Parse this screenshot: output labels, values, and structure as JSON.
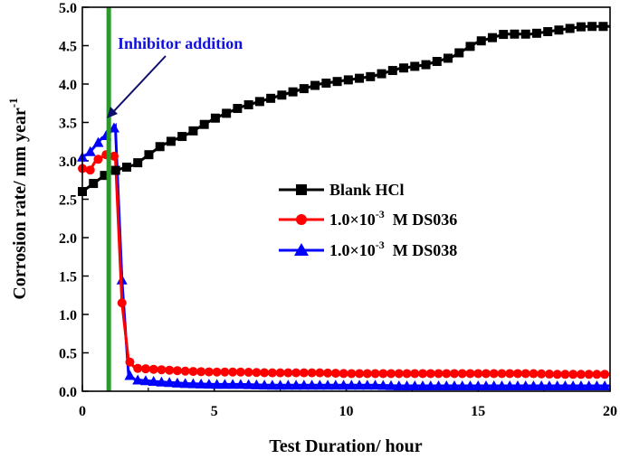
{
  "chart_data": {
    "type": "line",
    "xlabel": "Test Duration/ hour",
    "ylabel": "Corrosion rate/ mm year",
    "ylabel_sup": "-1",
    "xlim": [
      0,
      20
    ],
    "ylim": [
      0,
      5.0
    ],
    "xticks": [
      "0",
      "5",
      "10",
      "15",
      "20"
    ],
    "yticks": [
      "0.0",
      "0.5",
      "1.0",
      "1.5",
      "2.0",
      "2.5",
      "3.0",
      "3.5",
      "4.0",
      "4.5",
      "5.0"
    ],
    "grid": false,
    "legend_position": "center-right",
    "annotation": {
      "text": "Inhibitor addition",
      "x": 1.0,
      "color": "#1010e0"
    },
    "vline": {
      "x": 1.0,
      "color": "#2a9a2a"
    },
    "series": [
      {
        "name": "Blank HCl",
        "color": "#000000",
        "marker": "square",
        "x": [
          0,
          1,
          2,
          3,
          4,
          5,
          6,
          7,
          8,
          9,
          10,
          11,
          12,
          13,
          14,
          15,
          16,
          17,
          18,
          19,
          20
        ],
        "y": [
          2.6,
          2.85,
          2.95,
          3.2,
          3.35,
          3.55,
          3.7,
          3.8,
          3.9,
          4.0,
          4.05,
          4.1,
          4.2,
          4.25,
          4.35,
          4.55,
          4.65,
          4.65,
          4.7,
          4.75,
          4.75
        ]
      },
      {
        "name_prefix": "1.0×10",
        "name_sup": "-3",
        "name_suffix": "  M DS036",
        "color": "#ff0000",
        "marker": "circle",
        "x": [
          0,
          0.25,
          0.5,
          0.75,
          1.0,
          1.25,
          1.5,
          1.75,
          2,
          3,
          4,
          5,
          6,
          7,
          8,
          9,
          10,
          11,
          12,
          13,
          14,
          15,
          16,
          17,
          18,
          19,
          20
        ],
        "y": [
          2.9,
          2.85,
          3.0,
          3.05,
          3.1,
          3.05,
          1.15,
          0.4,
          0.3,
          0.28,
          0.26,
          0.25,
          0.25,
          0.24,
          0.24,
          0.24,
          0.23,
          0.23,
          0.23,
          0.23,
          0.23,
          0.23,
          0.23,
          0.23,
          0.22,
          0.22,
          0.22
        ]
      },
      {
        "name_prefix": "1.0×10",
        "name_sup": "-3",
        "name_suffix": "  M DS038",
        "color": "#0000ff",
        "marker": "triangle",
        "x": [
          0,
          0.25,
          0.5,
          0.75,
          1.0,
          1.25,
          1.5,
          1.75,
          2,
          3,
          4,
          5,
          6,
          7,
          8,
          9,
          10,
          11,
          12,
          13,
          14,
          15,
          16,
          17,
          18,
          19,
          20
        ],
        "y": [
          3.05,
          3.1,
          3.2,
          3.3,
          3.35,
          3.45,
          1.45,
          0.22,
          0.15,
          0.12,
          0.1,
          0.09,
          0.09,
          0.08,
          0.08,
          0.08,
          0.08,
          0.08,
          0.07,
          0.07,
          0.07,
          0.07,
          0.07,
          0.07,
          0.07,
          0.07,
          0.07
        ]
      }
    ],
    "legend": [
      "Blank HCl",
      "1.0×10-3 M DS036",
      "1.0×10-3 M DS038"
    ]
  }
}
